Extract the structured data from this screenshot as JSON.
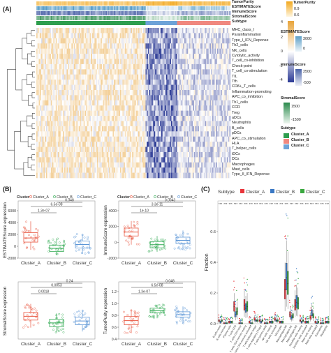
{
  "panels": {
    "a": "(A)",
    "b": "(B)",
    "c": "(C)"
  },
  "heatmap": {
    "annotation_tracks": [
      "TumorPurity",
      "ESTIMATEScore",
      "ImmuneScore",
      "StromalScore",
      "Subtype"
    ],
    "rows": [
      "MHC_class_I",
      "Parainflammation",
      "Type_I_IFN_Reponse",
      "Th2_cells",
      "NK_cells",
      "Cytolytic_activity",
      "T_cell_co-inhibition",
      "Check-point",
      "T_cell_co-stimulation",
      "TIL",
      "Tfh",
      "CD8+_T_cells",
      "Inflammation-promoting",
      "APC_co_inhibition",
      "Th1_cells",
      "CCR",
      "Treg",
      "aDCs",
      "Neutrophils",
      "B_cells",
      "pDCs",
      "APC_co_stimulation",
      "HLA",
      "T_helper_cells",
      "iDCs",
      "DCs",
      "Macrophages",
      "Mast_cells",
      "Type_II_IFN_Reponse"
    ]
  },
  "legend": {
    "tumorpurity": {
      "title": "TumorPurity",
      "ticks": [
        "0.9",
        "0.6"
      ],
      "colors": [
        "#f2a81d",
        "#fff6df"
      ]
    },
    "heat_scale": {
      "ticks": [
        "4",
        "2",
        "0",
        "-2",
        "-4"
      ],
      "colors": [
        "#e8a43a",
        "#ffffff",
        "#2b3a95"
      ]
    },
    "estimate": {
      "title": "ESTIMATEScore",
      "ticks": [
        "3000",
        "0"
      ],
      "colors": [
        "#5c9fc7",
        "#eef5fa"
      ]
    },
    "immune": {
      "title": "ImmuneScore",
      "ticks": [
        "2500",
        "-500"
      ],
      "colors": [
        "#4a63a8",
        "#eef0f8"
      ]
    },
    "stromal": {
      "title": "StromalScore",
      "ticks": [
        "1500",
        "-1500"
      ],
      "colors": [
        "#2b8a4c",
        "#edf6ef"
      ]
    },
    "subtype": {
      "title": "Subtype",
      "items": [
        {
          "label": "Cluster_A",
          "color": "#2e9e4f"
        },
        {
          "label": "Cluster_B",
          "color": "#f0887f"
        },
        {
          "label": "Cluster_C",
          "color": "#6ea3d8"
        }
      ]
    }
  },
  "colors": {
    "Cluster_A": "#e8553f",
    "Cluster_B": "#2da84f",
    "Cluster_C": "#5b95d6",
    "CellA": "#e8343a",
    "CellB": "#3a78c4",
    "CellC": "#3aa83f"
  },
  "chart_data": [
    {
      "type": "box",
      "title": "",
      "ylabel": "ESTIMATEScore expression",
      "categories": [
        "Cluster_A",
        "Cluster_B",
        "Cluster_C"
      ],
      "legend": {
        "title": "Cluster",
        "items": [
          "Cluster_A",
          "Cluster_B",
          "Cluster_C"
        ]
      },
      "ylim": [
        -2000,
        6000
      ],
      "yticks": [
        -2000,
        0,
        2000,
        4000,
        6000
      ],
      "ytick_labels": [
        "-2000",
        "0",
        "2000",
        "4000",
        "6000"
      ],
      "boxes": [
        {
          "q1": 700,
          "median": 1400,
          "q3": 2300,
          "wl": -600,
          "wh": 4200
        },
        {
          "q1": -900,
          "median": -350,
          "q3": 200,
          "wl": -1500,
          "wh": 1300
        },
        {
          "q1": -300,
          "median": 300,
          "q3": 900,
          "wl": -1300,
          "wh": 2100
        }
      ],
      "comparisons": [
        {
          "pair": [
            0,
            1
          ],
          "label": "1.3e-07"
        },
        {
          "pair": [
            0,
            2
          ],
          "label": "6.5e-08"
        },
        {
          "pair": [
            1,
            2
          ],
          "label": "0.048"
        }
      ]
    },
    {
      "type": "box",
      "title": "",
      "ylabel": "ImmuneScore expression",
      "categories": [
        "Cluster_A",
        "Cluster_B",
        "Cluster_C"
      ],
      "legend": {
        "title": "Cluster",
        "items": [
          "Cluster_A",
          "Cluster_B",
          "Cluster_C"
        ]
      },
      "ylim": [
        -2000,
        4000
      ],
      "yticks": [
        -2000,
        0,
        2000,
        4000
      ],
      "ytick_labels": [
        "-2000",
        "0",
        "2000",
        "4000"
      ],
      "boxes": [
        {
          "q1": 800,
          "median": 1300,
          "q3": 1800,
          "wl": -300,
          "wh": 2700
        },
        {
          "q1": -700,
          "median": -300,
          "q3": 100,
          "wl": -1200,
          "wh": 800
        },
        {
          "q1": -150,
          "median": 250,
          "q3": 650,
          "wl": -1000,
          "wh": 1500
        }
      ],
      "comparisons": [
        {
          "pair": [
            0,
            1
          ],
          "label": "1e-10"
        },
        {
          "pair": [
            0,
            2
          ],
          "label": "3.3e-11"
        },
        {
          "pair": [
            1,
            2
          ],
          "label": "0.0043"
        }
      ]
    },
    {
      "type": "box",
      "title": "",
      "ylabel": "StromalScore expression",
      "categories": [
        "Cluster_A",
        "Cluster_B",
        "Cluster_C"
      ],
      "legend": null,
      "ylim": [
        -2000,
        3000
      ],
      "yticks": [],
      "ytick_labels": [],
      "boxes": [
        {
          "q1": 0,
          "median": 400,
          "q3": 800,
          "wl": -800,
          "wh": 1700
        },
        {
          "q1": -700,
          "median": -300,
          "q3": 100,
          "wl": -1300,
          "wh": 700
        },
        {
          "q1": -500,
          "median": -100,
          "q3": 300,
          "wl": -1200,
          "wh": 1100
        }
      ],
      "comparisons": [
        {
          "pair": [
            0,
            1
          ],
          "label": "0.0018"
        },
        {
          "pair": [
            0,
            2
          ],
          "label": "0.0053"
        },
        {
          "pair": [
            1,
            2
          ],
          "label": "0.24"
        }
      ]
    },
    {
      "type": "box",
      "title": "",
      "ylabel": "TumorPurity expression",
      "categories": [
        "Cluster_A",
        "Cluster_B",
        "Cluster_C"
      ],
      "legend": null,
      "ylim": [
        0.4,
        1.2
      ],
      "yticks": [
        0.4,
        0.6,
        0.8,
        1.0,
        1.2
      ],
      "ytick_labels": [
        "0.4",
        "0.6",
        "0.8",
        "1.0",
        "1.2"
      ],
      "boxes": [
        {
          "q1": 0.64,
          "median": 0.71,
          "q3": 0.78,
          "wl": 0.5,
          "wh": 0.9
        },
        {
          "q1": 0.84,
          "median": 0.88,
          "q3": 0.92,
          "wl": 0.75,
          "wh": 0.98
        },
        {
          "q1": 0.77,
          "median": 0.81,
          "q3": 0.86,
          "wl": 0.66,
          "wh": 0.95
        }
      ],
      "comparisons": [
        {
          "pair": [
            0,
            1
          ],
          "label": "1.3e-07"
        },
        {
          "pair": [
            0,
            2
          ],
          "label": "6.5e-08"
        },
        {
          "pair": [
            1,
            2
          ],
          "label": "0.048"
        }
      ]
    },
    {
      "type": "box",
      "title": "",
      "ylabel": "Fraction",
      "legend": {
        "title": "Subtype",
        "items": [
          "Cluster_A",
          "Cluster_B",
          "Cluster_C"
        ]
      },
      "ylim": [
        0,
        0.8
      ],
      "yticks": [
        0,
        0.2,
        0.4,
        0.6
      ],
      "ytick_labels": [
        "0.0",
        "0.2",
        "0.4",
        "0.6"
      ],
      "sig_label": "***",
      "categories": [
        "B cells naive",
        "B cells memory",
        "Plasma cells",
        "T cells CD8",
        "T cells CD4 naive",
        "T cells CD4 memory resting",
        "T cells CD4 memory activated",
        "T cells follicular helper",
        "T cells regulatory (Tregs)",
        "T cells gamma delta",
        "NK cells resting",
        "NK cells activated",
        "Monocytes",
        "Macrophages M0",
        "Macrophages M1",
        "Macrophages M2",
        "Dendritic cells resting",
        "Dendritic cells activated",
        "Mast cells resting",
        "Mast cells activated",
        "Eosinophils",
        "Neutrophils"
      ],
      "medians": [
        [
          0.02,
          0.01,
          0.02
        ],
        [
          0.0,
          0.0,
          0.0
        ],
        [
          0.01,
          0.01,
          0.01
        ],
        [
          0.11,
          0.06,
          0.08
        ],
        [
          0.0,
          0.0,
          0.0
        ],
        [
          0.12,
          0.1,
          0.11
        ],
        [
          0.01,
          0.0,
          0.0
        ],
        [
          0.03,
          0.02,
          0.02
        ],
        [
          0.02,
          0.01,
          0.02
        ],
        [
          0.0,
          0.0,
          0.0
        ],
        [
          0.01,
          0.01,
          0.01
        ],
        [
          0.03,
          0.02,
          0.02
        ],
        [
          0.01,
          0.01,
          0.01
        ],
        [
          0.22,
          0.3,
          0.26
        ],
        [
          0.06,
          0.04,
          0.05
        ],
        [
          0.12,
          0.14,
          0.13
        ],
        [
          0.02,
          0.01,
          0.02
        ],
        [
          0.01,
          0.01,
          0.01
        ],
        [
          0.04,
          0.07,
          0.05
        ],
        [
          0.01,
          0.0,
          0.01
        ],
        [
          0.0,
          0.0,
          0.0
        ],
        [
          0.01,
          0.01,
          0.01
        ]
      ]
    }
  ]
}
